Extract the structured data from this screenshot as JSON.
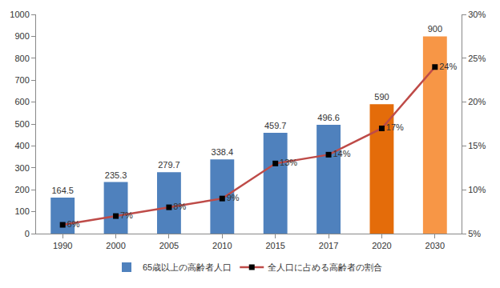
{
  "chart_data": {
    "type": "bar",
    "categories": [
      "1990",
      "2000",
      "2005",
      "2010",
      "2015",
      "2017",
      "2020",
      "2030"
    ],
    "series": [
      {
        "name": "65歳以上の高齢者人口",
        "type": "bar",
        "colors": [
          "#4f81bd",
          "#4f81bd",
          "#4f81bd",
          "#4f81bd",
          "#4f81bd",
          "#4f81bd",
          "#e46c0a",
          "#f79646"
        ],
        "values": [
          164.5,
          235.3,
          279.7,
          338.4,
          459.7,
          496.6,
          590,
          900
        ]
      },
      {
        "name": "全人口に占める高齢者の割合",
        "type": "line",
        "axis": "y2",
        "color": "#be4b48",
        "marker": "square",
        "values": [
          6,
          7,
          8,
          9,
          13,
          14,
          17,
          24
        ],
        "value_labels": [
          "6%",
          "7%",
          "8%",
          "9%",
          "13%",
          "14%",
          "17%",
          "24%"
        ]
      }
    ],
    "ylim": [
      0,
      1000
    ],
    "yticks": [
      0,
      100,
      200,
      300,
      400,
      500,
      600,
      700,
      800,
      900,
      1000
    ],
    "y2lim": [
      5,
      30
    ],
    "y2ticks": [
      {
        "value": 5,
        "label": "5%"
      },
      {
        "value": 10,
        "label": "10%"
      },
      {
        "value": 15,
        "label": "15%"
      },
      {
        "value": 20,
        "label": "20%"
      },
      {
        "value": 25,
        "label": "25%"
      },
      {
        "value": 30,
        "label": "30%"
      }
    ],
    "data_labels": true,
    "grid": false,
    "legend": "bottom"
  }
}
